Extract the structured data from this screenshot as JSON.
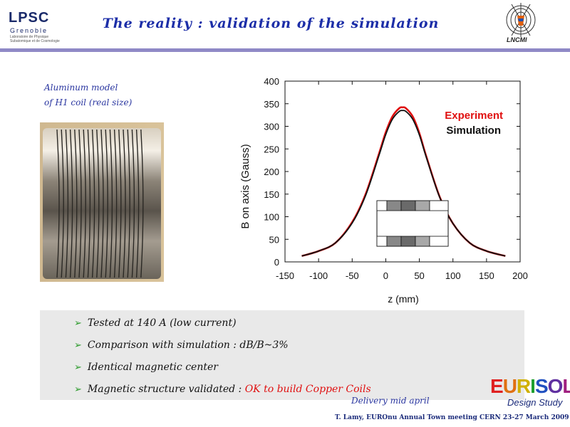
{
  "header": {
    "lpsc_logo": "LPSC",
    "lpsc_city": "Grenoble",
    "lpsc_subtitle": "Laboratoire de Physique Subatomique et de Cosmologie",
    "title": "The reality : validation of the simulation",
    "lncmi_logo": "LNCMI"
  },
  "photo": {
    "caption_line1": "Aluminum model",
    "caption_line2": "of H1 coil (real size)"
  },
  "chart_data": {
    "type": "line",
    "xlabel": "z (mm)",
    "ylabel": "B on axis (Gauss)",
    "xlim": [
      -150,
      200
    ],
    "ylim": [
      0,
      400
    ],
    "xticks": [
      -150,
      -100,
      -50,
      0,
      50,
      100,
      150,
      200
    ],
    "yticks": [
      0,
      50,
      100,
      150,
      200,
      250,
      300,
      350,
      400
    ],
    "legend_position": "top-right",
    "series": [
      {
        "name": "Experiment",
        "color": "#e01010",
        "x": [
          -125,
          -100,
          -75,
          -50,
          -30,
          -10,
          0,
          10,
          20,
          25,
          30,
          40,
          50,
          60,
          80,
          100,
          125,
          150,
          178
        ],
        "y": [
          13,
          24,
          42,
          88,
          150,
          240,
          287,
          322,
          340,
          342,
          340,
          322,
          285,
          235,
          145,
          85,
          42,
          24,
          13
        ]
      },
      {
        "name": "Simulation",
        "color": "#111111",
        "x": [
          -125,
          -100,
          -75,
          -50,
          -30,
          -10,
          0,
          10,
          20,
          25,
          30,
          40,
          50,
          60,
          80,
          100,
          125,
          150,
          178
        ],
        "y": [
          13,
          24,
          42,
          86,
          147,
          236,
          282,
          316,
          333,
          335,
          333,
          316,
          281,
          233,
          144,
          85,
          42,
          24,
          13
        ]
      }
    ]
  },
  "bullets": [
    {
      "text": "Tested at 140 A (low current)"
    },
    {
      "text": "Comparison with simulation : dB/B~3%"
    },
    {
      "text": "Identical magnetic center"
    },
    {
      "text": "Magnetic structure validated : ",
      "highlight": "OK to build Copper Coils"
    }
  ],
  "delivery": "Delivery mid april",
  "footer": "T. Lamy, EUROnu Annual Town meeting CERN 23-27 March 2009",
  "eurisol": {
    "logo": "EURISOL",
    "subtitle": "Design Study"
  }
}
